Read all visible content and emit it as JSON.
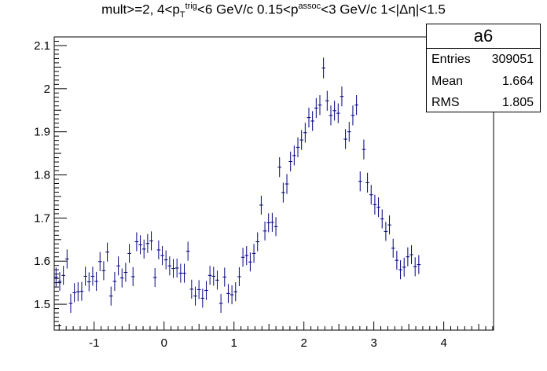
{
  "title": {
    "prefix": "mult>=2, 4<p",
    "pt_sub": "T",
    "pt_sup": "trig",
    "middle": "<6 GeV/c 0.15<p",
    "assoc_sup": "assoc",
    "suffix": "<3 GeV/c 1<|Δη|<1.5"
  },
  "stats": {
    "name": "a6",
    "entries_label": "Entries",
    "entries_value": "309051",
    "mean_label": "Mean",
    "mean_value": "1.664",
    "rms_label": "RMS",
    "rms_value": "1.805"
  },
  "colors": {
    "marker": "#000080",
    "axis": "#000000"
  },
  "chart_data": {
    "type": "scatter",
    "title": "",
    "xlabel": "",
    "ylabel": "",
    "xlim": [
      -1.5708,
      4.7124
    ],
    "ylim": [
      1.44,
      2.12
    ],
    "xticks": [
      -1,
      0,
      1,
      2,
      3,
      4
    ],
    "yticks": [
      1.5,
      1.6,
      1.7,
      1.8,
      1.9,
      2.0,
      2.1
    ],
    "ytick_labels": [
      "1.5",
      "1.6",
      "1.7",
      "1.8",
      "1.9",
      "2",
      "2.1"
    ],
    "bin_width": 0.0524,
    "y": [
      1.563,
      1.553,
      1.567,
      1.605,
      1.502,
      1.527,
      1.529,
      1.53,
      1.565,
      1.552,
      1.565,
      1.553,
      1.599,
      1.578,
      1.621,
      1.519,
      1.553,
      1.589,
      1.561,
      1.574,
      1.618,
      1.564,
      1.645,
      1.638,
      1.628,
      1.641,
      1.647,
      1.562,
      1.626,
      1.613,
      1.603,
      1.589,
      1.583,
      1.584,
      1.572,
      1.572,
      1.623,
      1.535,
      1.519,
      1.534,
      1.514,
      1.532,
      1.567,
      1.565,
      1.556,
      1.502,
      1.563,
      1.525,
      1.522,
      1.529,
      1.564,
      1.609,
      1.613,
      1.598,
      1.618,
      1.645,
      1.73,
      1.67,
      1.689,
      1.69,
      1.68,
      1.818,
      1.759,
      1.779,
      1.831,
      1.845,
      1.864,
      1.881,
      1.898,
      1.933,
      1.925,
      1.955,
      1.962,
      2.048,
      1.972,
      1.938,
      1.949,
      1.943,
      1.982,
      1.883,
      1.9,
      1.938,
      1.962,
      1.785,
      1.859,
      1.782,
      1.754,
      1.731,
      1.725,
      1.698,
      1.669,
      1.684,
      1.63,
      1.602,
      1.58,
      1.586,
      1.61,
      1.615,
      1.587,
      1.592
    ],
    "yerr": [
      0.022,
      0.022,
      0.022,
      0.022,
      0.022,
      0.022,
      0.022,
      0.022,
      0.022,
      0.022,
      0.022,
      0.022,
      0.022,
      0.022,
      0.022,
      0.022,
      0.022,
      0.022,
      0.022,
      0.022,
      0.022,
      0.022,
      0.022,
      0.022,
      0.022,
      0.022,
      0.022,
      0.022,
      0.022,
      0.022,
      0.022,
      0.022,
      0.022,
      0.022,
      0.022,
      0.022,
      0.022,
      0.022,
      0.022,
      0.022,
      0.022,
      0.022,
      0.022,
      0.022,
      0.022,
      0.022,
      0.022,
      0.022,
      0.022,
      0.022,
      0.022,
      0.022,
      0.022,
      0.022,
      0.022,
      0.022,
      0.022,
      0.022,
      0.022,
      0.022,
      0.022,
      0.023,
      0.023,
      0.023,
      0.023,
      0.023,
      0.023,
      0.023,
      0.023,
      0.023,
      0.023,
      0.023,
      0.023,
      0.024,
      0.023,
      0.023,
      0.023,
      0.023,
      0.023,
      0.023,
      0.023,
      0.023,
      0.023,
      0.023,
      0.023,
      0.023,
      0.023,
      0.023,
      0.023,
      0.022,
      0.022,
      0.022,
      0.022,
      0.022,
      0.022,
      0.022,
      0.022,
      0.022,
      0.022,
      0.022
    ],
    "grid": false,
    "legend": "top-right"
  }
}
